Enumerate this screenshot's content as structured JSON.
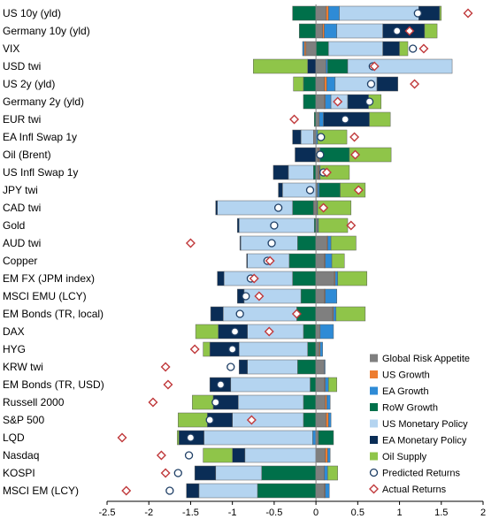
{
  "chart_data": {
    "type": "bar",
    "subtype": "horizontal-stacked-with-markers",
    "title": "",
    "xlabel": "",
    "ylabel": "",
    "xlim": [
      -2.5,
      2.0
    ],
    "xticks": [
      -2.5,
      -2.0,
      -1.5,
      -1.0,
      -0.5,
      0.0,
      0.5,
      1.0,
      1.5,
      2.0
    ],
    "xtick_labels": [
      "-2.5",
      "-2",
      "-1.5",
      "-1",
      "-0.5",
      "0",
      "0.5",
      "1",
      "1.5",
      "2"
    ],
    "grid": false,
    "legend_position": "bottom-right",
    "categories": [
      "US 10y (yld)",
      "Germany 10y (yld)",
      "VIX",
      "USD twi",
      "US 2y (yld)",
      "Germany 2y (yld)",
      "EUR twi",
      "EA Infl Swap 1y",
      "Oil (Brent)",
      "US Infl Swap 1y",
      "JPY twi",
      "CAD twi",
      "Gold",
      "AUD twi",
      "Copper",
      "EM FX (JPM index)",
      "MSCI EMU (LCY)",
      "EM Bonds (TR, local)",
      "DAX",
      "HYG",
      "KRW twi",
      "EM Bonds (TR, USD)",
      "Russell 2000",
      "S&P 500",
      "LQD",
      "Nasdaq",
      "KOSPI",
      "MSCI EM (LCY)"
    ],
    "series": [
      {
        "name": "Global Risk Appetite",
        "color": "#7f7f7f",
        "values": [
          0.12,
          0.08,
          -0.12,
          0.12,
          0.1,
          0.1,
          0.04,
          -0.03,
          0.03,
          0.03,
          0.02,
          -0.03,
          0.02,
          0.13,
          0.1,
          0.22,
          0.1,
          0.2,
          0.05,
          0.04,
          0.1,
          0.1,
          0.11,
          0.12,
          0.03,
          0.11,
          0.1,
          0.1
        ]
      },
      {
        "name": "US Growth",
        "color": "#ed7d31",
        "values": [
          0.03,
          0.02,
          -0.02,
          0.0,
          0.03,
          0.01,
          0.0,
          0.0,
          0.01,
          0.01,
          0.0,
          0.01,
          0.0,
          0.01,
          0.01,
          0.01,
          0.01,
          0.01,
          0.0,
          0.01,
          0.0,
          0.01,
          0.02,
          0.03,
          0.0,
          0.03,
          0.0,
          0.01
        ]
      },
      {
        "name": "EA Growth",
        "color": "#2e8bd6",
        "values": [
          0.13,
          0.15,
          -0.02,
          0.02,
          0.1,
          0.07,
          0.05,
          0.02,
          0.01,
          0.01,
          0.02,
          0.01,
          0.01,
          0.04,
          0.08,
          0.03,
          0.14,
          0.03,
          0.16,
          0.03,
          0.01,
          0.04,
          0.04,
          0.03,
          -0.04,
          0.03,
          0.04,
          0.05
        ]
      },
      {
        "name": "RoW Growth",
        "color": "#00704a",
        "values": [
          -0.28,
          -0.2,
          0.15,
          0.24,
          -0.15,
          -0.15,
          -0.02,
          0.0,
          0.35,
          -0.03,
          0.25,
          -0.25,
          -0.02,
          -0.22,
          -0.32,
          -0.28,
          -0.18,
          -0.23,
          -0.15,
          -0.1,
          -0.22,
          -0.07,
          -0.15,
          -0.15,
          0.18,
          0.0,
          -0.65,
          -0.7
        ]
      },
      {
        "name": "US Monetary Policy",
        "color": "#b4d4f0",
        "values": [
          0.95,
          0.55,
          0.65,
          1.25,
          0.5,
          0.2,
          0.0,
          -0.15,
          0.0,
          -0.3,
          -0.4,
          -0.9,
          -0.9,
          -0.68,
          -0.5,
          -0.82,
          -0.68,
          -0.88,
          -0.67,
          -0.82,
          -0.6,
          -0.95,
          -0.78,
          -0.85,
          -1.3,
          -0.85,
          -0.55,
          -0.7
        ]
      },
      {
        "name": "EA Monetary Policy",
        "color": "#0a2d56",
        "values": [
          0.25,
          0.5,
          0.2,
          -0.1,
          0.25,
          0.25,
          0.55,
          -0.1,
          -0.25,
          -0.18,
          -0.05,
          -0.02,
          -0.02,
          -0.01,
          -0.01,
          -0.08,
          -0.08,
          -0.15,
          -0.35,
          -0.35,
          -0.1,
          -0.25,
          -0.3,
          -0.3,
          -0.3,
          -0.15,
          -0.25,
          -0.15
        ]
      },
      {
        "name": "Oil Supply",
        "color": "#8fc549",
        "values": [
          0.02,
          0.15,
          0.1,
          -0.65,
          -0.12,
          0.15,
          0.25,
          0.35,
          0.5,
          0.35,
          0.3,
          0.4,
          0.35,
          0.3,
          0.15,
          0.35,
          0.0,
          0.35,
          -0.27,
          -0.08,
          0.0,
          0.1,
          -0.25,
          -0.35,
          -0.02,
          -0.35,
          0.12,
          0.0
        ]
      }
    ],
    "markers": [
      {
        "name": "Predicted Returns",
        "symbol": "circle",
        "values": [
          1.22,
          0.97,
          1.16,
          0.68,
          0.66,
          0.64,
          0.35,
          0.06,
          0.05,
          0.09,
          -0.07,
          -0.45,
          -0.5,
          -0.53,
          -0.58,
          -0.78,
          -0.84,
          -0.91,
          -0.97,
          -1.0,
          -1.02,
          -1.14,
          -1.2,
          -1.27,
          -1.5,
          -1.52,
          -1.65,
          -1.75
        ]
      },
      {
        "name": "Actual Returns",
        "symbol": "diamond",
        "values": [
          1.82,
          1.12,
          1.29,
          0.7,
          1.18,
          0.26,
          -0.26,
          0.46,
          0.47,
          0.13,
          0.51,
          0.09,
          0.42,
          -1.5,
          -0.55,
          -0.74,
          -0.68,
          -0.23,
          -0.56,
          -1.45,
          -1.8,
          -1.77,
          -1.95,
          -0.77,
          -2.32,
          -1.85,
          -1.8,
          -2.27
        ]
      }
    ]
  }
}
